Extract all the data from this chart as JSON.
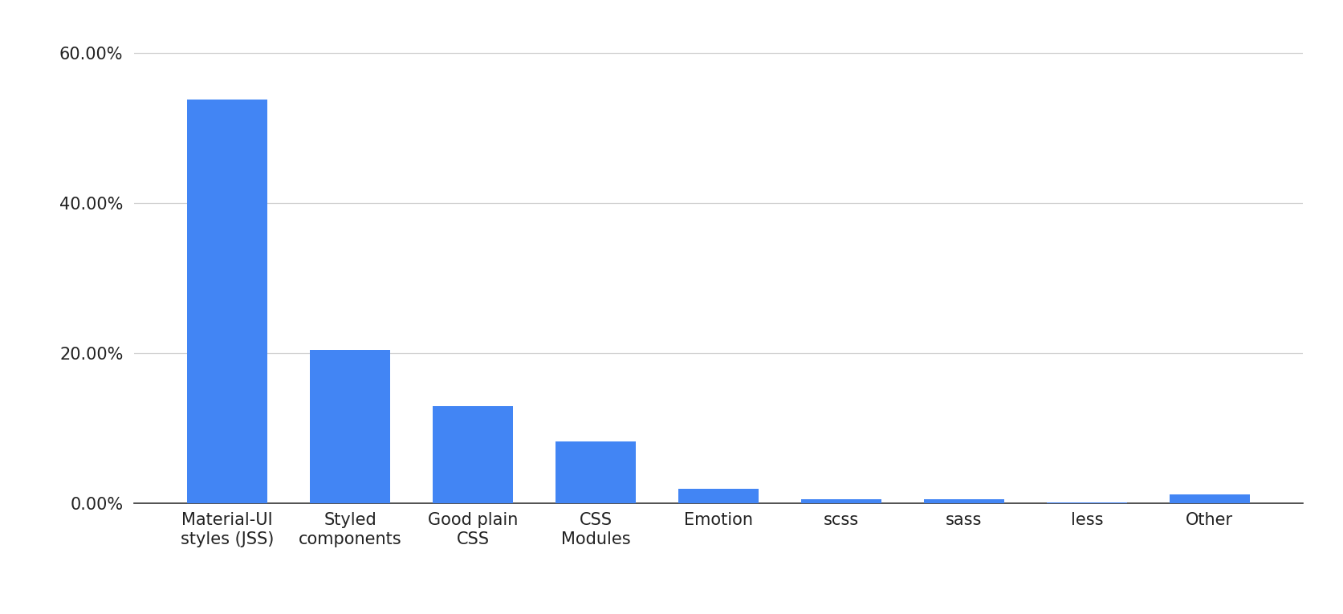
{
  "categories": [
    "Material-UI\nstyles (JSS)",
    "Styled\ncomponents",
    "Good plain\nCSS",
    "CSS\nModules",
    "Emotion",
    "scss",
    "sass",
    "less",
    "Other"
  ],
  "values": [
    53.84,
    20.41,
    13.01,
    8.31,
    1.96,
    0.59,
    0.59,
    0.09,
    1.19
  ],
  "bar_color": "#4285f4",
  "background_color": "#ffffff",
  "ylim": [
    0,
    63
  ],
  "yticks": [
    0,
    20,
    40,
    60
  ],
  "ytick_labels": [
    "0.00%",
    "20.00%",
    "40.00%",
    "60.00%"
  ],
  "grid_color": "#d0d0d0",
  "tick_label_color": "#222222",
  "bottom_spine_color": "#333333",
  "figsize": [
    16.73,
    7.65
  ],
  "dpi": 100,
  "bar_width": 0.65,
  "font_family": "sans-serif",
  "tick_fontsize": 15
}
